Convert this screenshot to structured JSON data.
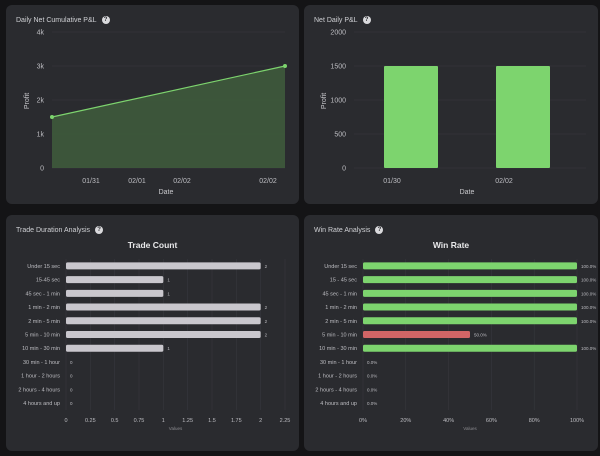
{
  "panels": {
    "cumulative": {
      "title": "Daily Net Cumulative P&L"
    },
    "net_daily": {
      "title": "Net Daily P&L"
    },
    "duration": {
      "title": "Trade Duration Analysis"
    },
    "win_rate": {
      "title": "Win Rate Analysis"
    }
  },
  "colors": {
    "green": "#7dd46e",
    "red": "#d16566",
    "bar_grey": "#c9c7cd",
    "area_fill": "#3e5a3c"
  },
  "chart_data": [
    {
      "id": "cumulative",
      "type": "area",
      "title": "Daily Net Cumulative P&L",
      "xlabel": "Date",
      "ylabel": "Profit",
      "x_ticks": [
        "01/31",
        "02/01",
        "02/02",
        "02/02"
      ],
      "y_ticks": [
        "0",
        "1k",
        "2k",
        "3k",
        "4k"
      ],
      "ylim": [
        0,
        4000
      ],
      "points": [
        1500,
        3000
      ]
    },
    {
      "id": "net_daily",
      "type": "bar",
      "title": "Net Daily P&L",
      "xlabel": "Date",
      "ylabel": "Profit",
      "categories": [
        "01/30",
        "02/02"
      ],
      "values": [
        1500,
        1500
      ],
      "y_ticks": [
        "0",
        "500",
        "1000",
        "1500",
        "2000"
      ],
      "ylim": [
        0,
        2000
      ]
    },
    {
      "id": "trade_count",
      "type": "bar",
      "orientation": "horizontal",
      "title": "Trade Count",
      "xlabel": "Values",
      "categories": [
        "Under 15 sec",
        "15-45 sec",
        "45 sec - 1 min",
        "1 min - 2 min",
        "2 min - 5 min",
        "5 min - 10 min",
        "10 min - 30 min",
        "30 min - 1 hour",
        "1 hour - 2 hours",
        "2 hours - 4 hours",
        "4 hours and up"
      ],
      "values": [
        2,
        1,
        1,
        2,
        2,
        2,
        1,
        0,
        0,
        0,
        0
      ],
      "value_labels": [
        "2",
        "1",
        "1",
        "2",
        "2",
        "2",
        "1",
        "0",
        "0",
        "0",
        "0"
      ],
      "x_ticks": [
        "0",
        "0.25",
        "0.5",
        "0.75",
        "1",
        "1.25",
        "1.5",
        "1.75",
        "2",
        "2.25"
      ],
      "xlim": [
        0,
        2.25
      ]
    },
    {
      "id": "win_rate",
      "type": "bar",
      "orientation": "horizontal",
      "title": "Win Rate",
      "xlabel": "Values",
      "categories": [
        "Under 15 sec",
        "15 - 45 sec",
        "45 sec - 1 min",
        "1 min - 2 min",
        "2 min - 5 min",
        "5 min - 10 min",
        "10 min - 30 min",
        "30 min - 1 hour",
        "1 hour - 2 hours",
        "2 hours - 4 hours",
        "4 hours and up"
      ],
      "values": [
        100,
        100,
        100,
        100,
        100,
        50,
        100,
        0,
        0,
        0,
        0
      ],
      "value_labels": [
        "100.0%",
        "100.0%",
        "100.0%",
        "100.0%",
        "100.0%",
        "50.0%",
        "100.0%",
        "0.0%",
        "0.0%",
        "0.0%",
        "0.0%"
      ],
      "bar_colors": [
        "green",
        "green",
        "green",
        "green",
        "green",
        "red",
        "green",
        "green",
        "green",
        "green",
        "green"
      ],
      "x_ticks": [
        "0%",
        "20%",
        "40%",
        "60%",
        "80%",
        "100%"
      ],
      "xlim": [
        0,
        100
      ]
    }
  ]
}
